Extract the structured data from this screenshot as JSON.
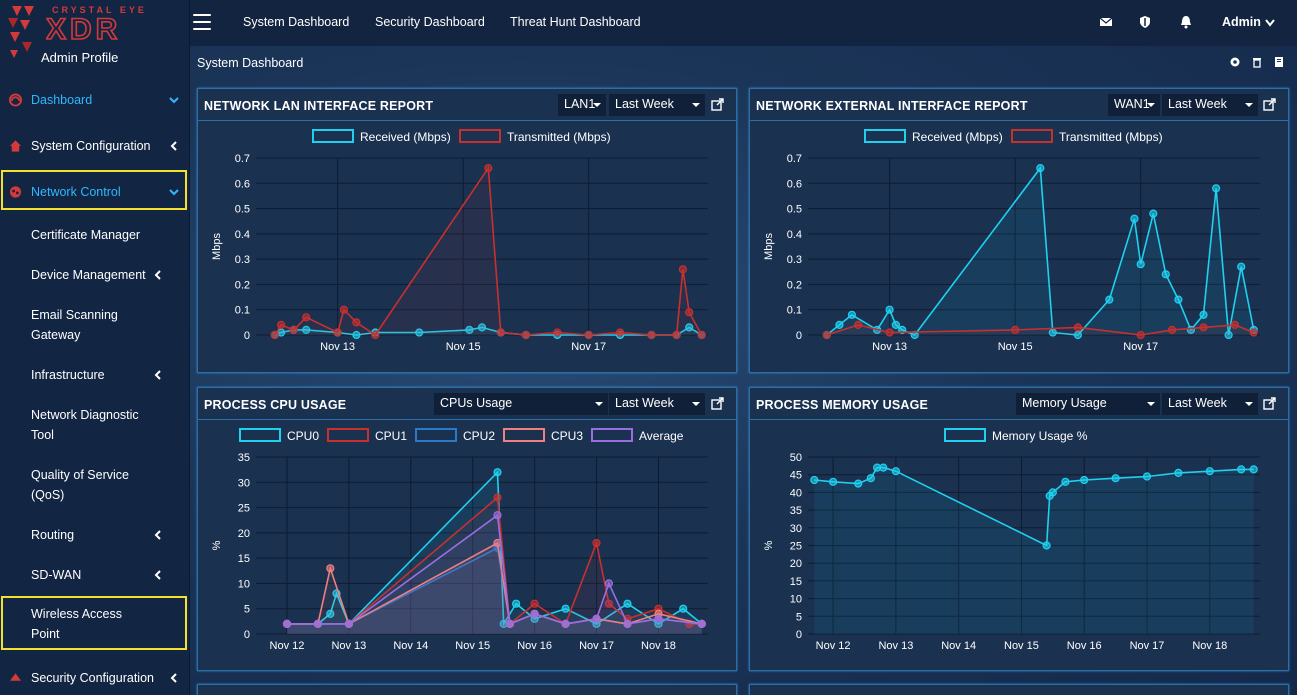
{
  "brand": {
    "tagline": "CRYSTAL EYE",
    "name": "XDR",
    "profile": "Admin Profile"
  },
  "topbar": {
    "links": [
      "System Dashboard",
      "Security Dashboard",
      "Threat Hunt Dashboard"
    ],
    "user": "Admin"
  },
  "sidebar": {
    "items": [
      {
        "label": "Dashboard",
        "icon": "dashboard-icon"
      },
      {
        "label": "System Configuration",
        "icon": "home-icon"
      },
      {
        "label": "Network Control",
        "icon": "network-icon"
      },
      {
        "label": "Certificate Manager"
      },
      {
        "label": "Device Management"
      },
      {
        "label": "Email Scanning Gateway"
      },
      {
        "label": "Infrastructure"
      },
      {
        "label": "Network Diagnostic Tool"
      },
      {
        "label": "Quality of Service (QoS)"
      },
      {
        "label": "Routing"
      },
      {
        "label": "SD-WAN"
      },
      {
        "label": "Wireless Access Point"
      },
      {
        "label": "Security Configuration",
        "icon": "shield-icon"
      }
    ]
  },
  "page": {
    "title": "System Dashboard"
  },
  "panels": {
    "lan": {
      "title": "NETWORK LAN INTERFACE REPORT",
      "select1": "LAN1",
      "select2": "Last Week"
    },
    "wan": {
      "title": "NETWORK EXTERNAL INTERFACE REPORT",
      "select1": "WAN1",
      "select2": "Last Week"
    },
    "cpu": {
      "title": "PROCESS CPU USAGE",
      "select1": "CPUs Usage",
      "select2": "Last Week"
    },
    "mem": {
      "title": "PROCESS MEMORY USAGE",
      "select1": "Memory Usage",
      "select2": "Last Week"
    }
  },
  "colors": {
    "accent": "#2fb8ff",
    "received": "#1fd0ef",
    "transmitted": "#c8302f",
    "cpu2": "#2a78c8",
    "cpu3": "#f08080",
    "average": "#9b6ee0",
    "highlight": "#f4e12d"
  },
  "chart_data": [
    {
      "type": "line",
      "ylabel": "Mbps",
      "ylim": [
        0,
        0.7
      ],
      "yticks": [
        0,
        0.1,
        0.2,
        0.3,
        0.4,
        0.5,
        0.6,
        0.7
      ],
      "xticks": [
        "Nov 13",
        "Nov 15",
        "Nov 17"
      ],
      "series": [
        {
          "name": "Received (Mbps)",
          "color": "#1fd0ef",
          "x": [
            12.0,
            12.1,
            12.3,
            12.5,
            13.0,
            13.3,
            13.6,
            14.3,
            15.1,
            15.3,
            15.6,
            16.0,
            16.5,
            17.0,
            17.5,
            18.0,
            18.4,
            18.6,
            18.8
          ],
          "values": [
            0.0,
            0.01,
            0.02,
            0.02,
            0.01,
            0.0,
            0.01,
            0.01,
            0.02,
            0.03,
            0.01,
            0.0,
            0.0,
            0.0,
            0.0,
            0.0,
            0.0,
            0.03,
            0.0
          ]
        },
        {
          "name": "Transmitted (Mbps)",
          "color": "#c8302f",
          "x": [
            12.0,
            12.1,
            12.3,
            12.5,
            13.0,
            13.1,
            13.3,
            13.6,
            15.4,
            15.6,
            16.0,
            16.5,
            17.0,
            17.5,
            18.0,
            18.4,
            18.5,
            18.6,
            18.8
          ],
          "values": [
            0.0,
            0.04,
            0.02,
            0.07,
            0.01,
            0.1,
            0.05,
            0.0,
            0.66,
            0.01,
            0.0,
            0.01,
            0.0,
            0.01,
            0.0,
            0.0,
            0.26,
            0.09,
            0.0
          ]
        }
      ]
    },
    {
      "type": "line",
      "ylabel": "Mbps",
      "ylim": [
        0,
        0.7
      ],
      "yticks": [
        0,
        0.1,
        0.2,
        0.3,
        0.4,
        0.5,
        0.6,
        0.7
      ],
      "xticks": [
        "Nov 13",
        "Nov 15",
        "Nov 17"
      ],
      "series": [
        {
          "name": "Received (Mbps)",
          "color": "#1fd0ef",
          "x": [
            12.0,
            12.2,
            12.4,
            12.8,
            13.0,
            13.1,
            13.2,
            13.4,
            15.4,
            15.6,
            16.0,
            16.5,
            16.9,
            17.0,
            17.2,
            17.4,
            17.6,
            17.8,
            18.0,
            18.2,
            18.4,
            18.6,
            18.8
          ],
          "values": [
            0.0,
            0.04,
            0.08,
            0.02,
            0.1,
            0.04,
            0.02,
            0.0,
            0.66,
            0.01,
            0.0,
            0.14,
            0.46,
            0.28,
            0.48,
            0.24,
            0.14,
            0.02,
            0.08,
            0.58,
            0.0,
            0.27,
            0.02
          ]
        },
        {
          "name": "Transmitted (Mbps)",
          "color": "#c8302f",
          "x": [
            12.0,
            12.5,
            13.0,
            15.0,
            16.0,
            17.0,
            17.5,
            18.0,
            18.5,
            18.8
          ],
          "values": [
            0.0,
            0.04,
            0.01,
            0.02,
            0.03,
            0.0,
            0.02,
            0.03,
            0.04,
            0.01
          ]
        }
      ]
    },
    {
      "type": "line",
      "ylabel": "%",
      "ylim": [
        0,
        35
      ],
      "yticks": [
        0,
        5,
        10,
        15,
        20,
        25,
        30,
        35
      ],
      "xticks": [
        "Nov 12",
        "Nov 13",
        "Nov 14",
        "Nov 15",
        "Nov 16",
        "Nov 17",
        "Nov 18"
      ],
      "series": [
        {
          "name": "CPU0",
          "color": "#1fd0ef",
          "x": [
            12.0,
            12.5,
            12.7,
            12.8,
            13.0,
            15.4,
            15.5,
            15.7,
            16.0,
            16.5,
            17.0,
            17.5,
            18.0,
            18.4,
            18.7
          ],
          "values": [
            2,
            2,
            4,
            8,
            2,
            32,
            2,
            6,
            3,
            5,
            2,
            6,
            2,
            5,
            2
          ]
        },
        {
          "name": "CPU1",
          "color": "#c8302f",
          "x": [
            12.0,
            12.5,
            13.0,
            15.4,
            15.6,
            16.0,
            16.5,
            17.0,
            17.2,
            17.5,
            18.0,
            18.5,
            18.7
          ],
          "values": [
            2,
            2,
            2,
            27,
            2,
            6,
            2,
            18,
            6,
            3,
            5,
            2,
            2
          ]
        },
        {
          "name": "CPU2",
          "color": "#2a78c8",
          "x": [
            12.0,
            12.5,
            13.0,
            15.4,
            15.6,
            16.0,
            16.5,
            17.0,
            17.5,
            18.0,
            18.7
          ],
          "values": [
            2,
            2,
            2,
            17,
            2,
            4,
            2,
            3,
            2,
            3,
            2
          ]
        },
        {
          "name": "CPU3",
          "color": "#f08080",
          "x": [
            12.0,
            12.5,
            12.7,
            13.0,
            15.4,
            15.6,
            16.0,
            16.5,
            17.0,
            17.5,
            18.0,
            18.7
          ],
          "values": [
            2,
            2,
            13,
            2,
            18,
            2,
            4,
            2,
            3,
            2,
            4,
            2
          ]
        },
        {
          "name": "Average",
          "color": "#9b6ee0",
          "x": [
            12.0,
            12.5,
            13.0,
            15.4,
            15.6,
            16.0,
            16.5,
            17.0,
            17.2,
            17.5,
            18.0,
            18.7
          ],
          "values": [
            2,
            2,
            2,
            23.5,
            2,
            4,
            2,
            3,
            10,
            2,
            3,
            2
          ]
        }
      ]
    },
    {
      "type": "line",
      "ylabel": "%",
      "ylim": [
        0,
        50
      ],
      "yticks": [
        0,
        5,
        10,
        15,
        20,
        25,
        30,
        35,
        40,
        45,
        50
      ],
      "xticks": [
        "Nov 12",
        "Nov 13",
        "Nov 14",
        "Nov 15",
        "Nov 16",
        "Nov 17",
        "Nov 18"
      ],
      "series": [
        {
          "name": "Memory Usage %",
          "color": "#1fd0ef",
          "x": [
            11.7,
            12.0,
            12.4,
            12.6,
            12.7,
            12.8,
            13.0,
            15.4,
            15.45,
            15.5,
            15.7,
            16.0,
            16.5,
            17.0,
            17.5,
            18.0,
            18.5,
            18.7
          ],
          "values": [
            43.5,
            43,
            42.5,
            44,
            47,
            47,
            46,
            25,
            39,
            40,
            43,
            43.5,
            44,
            44.5,
            45.5,
            46,
            46.5,
            46.5
          ]
        }
      ]
    }
  ]
}
